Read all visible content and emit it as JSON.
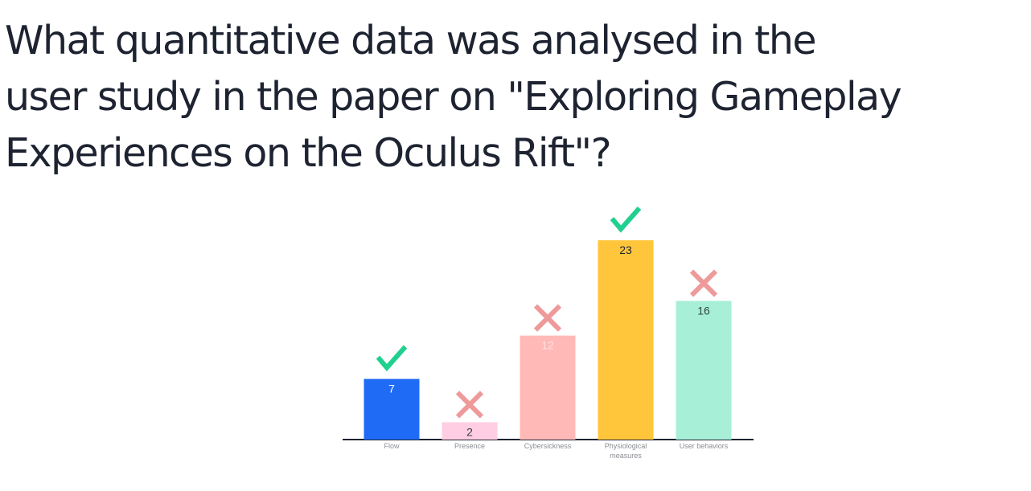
{
  "question": {
    "line1": "What quantitative data was analysed in the",
    "line2": "user study in the paper on \"Exploring Gameplay",
    "line3": "Experiences on the Oculus Rift\"?"
  },
  "chart_data": {
    "type": "bar",
    "categories": [
      "Flow",
      "Presence",
      "Cybersickness",
      "Physiological measures",
      "User behaviors"
    ],
    "category_lines": [
      [
        "Flow"
      ],
      [
        "Presence"
      ],
      [
        "Cybersickness"
      ],
      [
        "Physiological",
        "measures"
      ],
      [
        "User behaviors"
      ]
    ],
    "values": [
      7,
      2,
      12,
      23,
      16
    ],
    "correct": [
      true,
      false,
      false,
      true,
      false
    ],
    "bar_colors": [
      "#1f6bf5",
      "#ffcee2",
      "#ffb9b7",
      "#ffc53b",
      "#a7efd6"
    ],
    "value_label_colors": [
      "#ffffff",
      "#3a3d44",
      "#ffe1e1",
      "#1e2331",
      "#2f4a42"
    ],
    "check_color": "#20d08e",
    "cross_color": "#ee9a9a",
    "axis_color": "#1e2331",
    "ylim": [
      0,
      23
    ],
    "xlabel": "",
    "ylabel": ""
  }
}
